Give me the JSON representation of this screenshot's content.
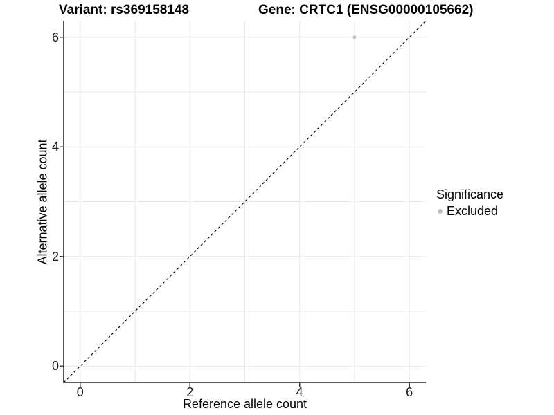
{
  "figure": {
    "title_left": "Variant: rs369158148",
    "title_right": "Gene: CRTC1 (ENSG00000105662)"
  },
  "chart_data": {
    "type": "scatter",
    "title_left": "Variant: rs369158148",
    "title_right": "Gene: CRTC1 (ENSG00000105662)",
    "xlabel": "Reference allele count",
    "ylabel": "Alternative allele count",
    "xlim": [
      -0.3,
      6.3
    ],
    "ylim": [
      -0.3,
      6.3
    ],
    "x_ticks": [
      0,
      2,
      4,
      6
    ],
    "y_ticks": [
      0,
      2,
      4,
      6
    ],
    "x_tick_labels": [
      "0",
      "2",
      "4",
      "6"
    ],
    "y_tick_labels": [
      "0",
      "2",
      "4",
      "6"
    ],
    "grid": true,
    "grid_values": [
      0,
      1,
      2,
      3,
      4,
      5,
      6
    ],
    "series": [
      {
        "name": "Excluded",
        "color": "#bcbcbc",
        "point_radius": 2.5,
        "points": [
          [
            5,
            6
          ]
        ]
      }
    ],
    "identity_line": {
      "style": "dashed",
      "color": "#000000",
      "from": [
        -0.3,
        -0.3
      ],
      "to": [
        6.3,
        6.3
      ]
    },
    "legend": {
      "title": "Significance",
      "position": "right",
      "entries": [
        {
          "label": "Excluded",
          "color": "#bebebe"
        }
      ]
    }
  },
  "style": {
    "background": "#ffffff",
    "gridline_color": "#e9e9e9",
    "axis_line_color": "#404040",
    "tick_mark_color": "#404040",
    "point_color": "#bcbcbc",
    "legend_key_color": "#bebebe",
    "text_color": "#000000"
  }
}
